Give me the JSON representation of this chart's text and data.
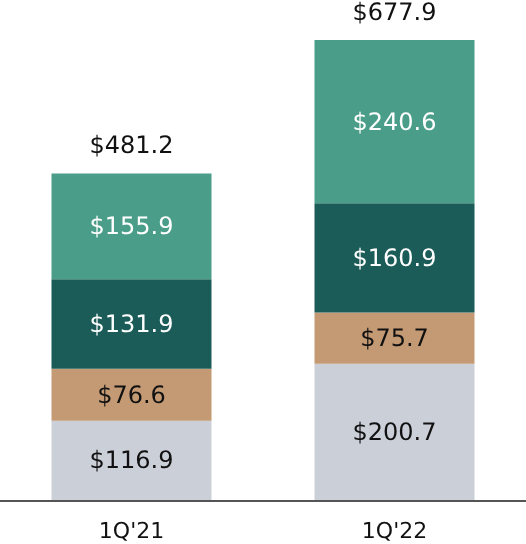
{
  "chart_data": {
    "type": "bar",
    "stacked": true,
    "categories": [
      "1Q'21",
      "1Q'22"
    ],
    "series": [
      {
        "color": "#cbcfd8",
        "values": [
          116.9,
          200.7
        ],
        "value_labels": [
          "$116.9",
          "$200.7"
        ]
      },
      {
        "color": "#c49a74",
        "values": [
          76.6,
          75.7
        ],
        "value_labels": [
          "$76.6",
          "$75.7"
        ]
      },
      {
        "color": "#1b5c58",
        "values": [
          131.9,
          160.9
        ],
        "value_labels": [
          "$131.9",
          "$160.9"
        ]
      },
      {
        "color": "#4a9e89",
        "values": [
          155.9,
          240.6
        ],
        "value_labels": [
          "$155.9",
          "$240.6"
        ]
      }
    ],
    "totals": [
      "$481.2",
      "$677.9"
    ]
  }
}
